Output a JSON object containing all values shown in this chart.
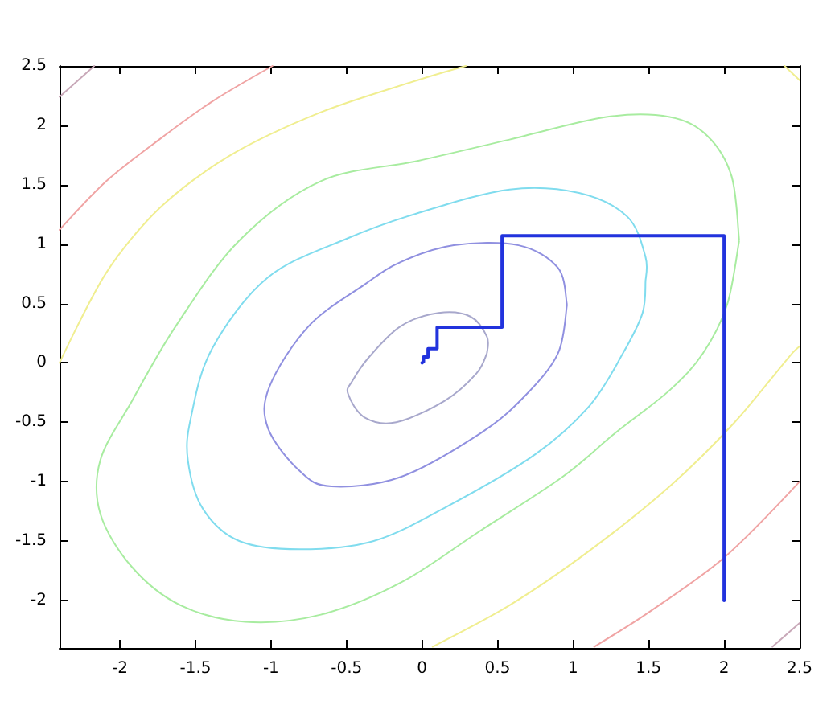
{
  "chart_data": {
    "type": "line",
    "xlim": [
      -2.4,
      2.5
    ],
    "ylim": [
      -2.4,
      2.5
    ],
    "xticks": [
      -2,
      -1.5,
      -1,
      -0.5,
      0,
      0.5,
      1,
      1.5,
      2,
      2.5
    ],
    "yticks": [
      -2,
      -1.5,
      -1,
      -0.5,
      0,
      0.5,
      1,
      1.5,
      2,
      2.5
    ],
    "grid": false,
    "marker": "none",
    "line_style": "solid",
    "series": [
      {
        "color": "#f0ee90",
        "x": [
          -2.4,
          -2.09,
          -1.74,
          -1.28,
          -0.67,
          -0.03,
          0.29
        ],
        "values": [
          0.0,
          0.76,
          1.3,
          1.74,
          2.11,
          2.38,
          2.5
        ]
      },
      {
        "color": "#f0ee90",
        "x": [
          0.07,
          0.58,
          1.11,
          1.64,
          2.07,
          2.45,
          2.5
        ],
        "values": [
          -2.39,
          -2.04,
          -1.58,
          -1.04,
          -0.5,
          0.08,
          0.14
        ]
      },
      {
        "color": "#f0ee90",
        "x": [
          2.4,
          2.5
        ],
        "values": [
          2.5,
          2.38
        ]
      },
      {
        "color": "#f0a4a4",
        "x": [
          -2.4,
          -2.09,
          -1.74,
          -1.39,
          -0.99
        ],
        "values": [
          1.12,
          1.53,
          1.88,
          2.2,
          2.5
        ]
      },
      {
        "color": "#f0a4a4",
        "x": [
          1.14,
          1.49,
          2.0,
          2.5
        ],
        "values": [
          -2.39,
          -2.11,
          -1.64,
          -1.0
        ]
      },
      {
        "color": "#c8a8b8",
        "x": [
          -2.4,
          -2.17
        ],
        "values": [
          2.24,
          2.5
        ]
      },
      {
        "color": "#c8a8b8",
        "x": [
          2.32,
          2.5
        ],
        "values": [
          -2.39,
          -2.19
        ]
      },
      {
        "color": "#2233dd",
        "x": [
          2,
          2,
          0.53,
          0.53,
          0.1,
          0.1,
          0.04,
          0.04,
          0.01,
          0.01,
          0
        ],
        "values": [
          -2,
          1.07,
          1.07,
          0.3,
          0.3,
          0.12,
          0.12,
          0.05,
          0.05,
          0.01,
          0
        ]
      }
    ]
  }
}
